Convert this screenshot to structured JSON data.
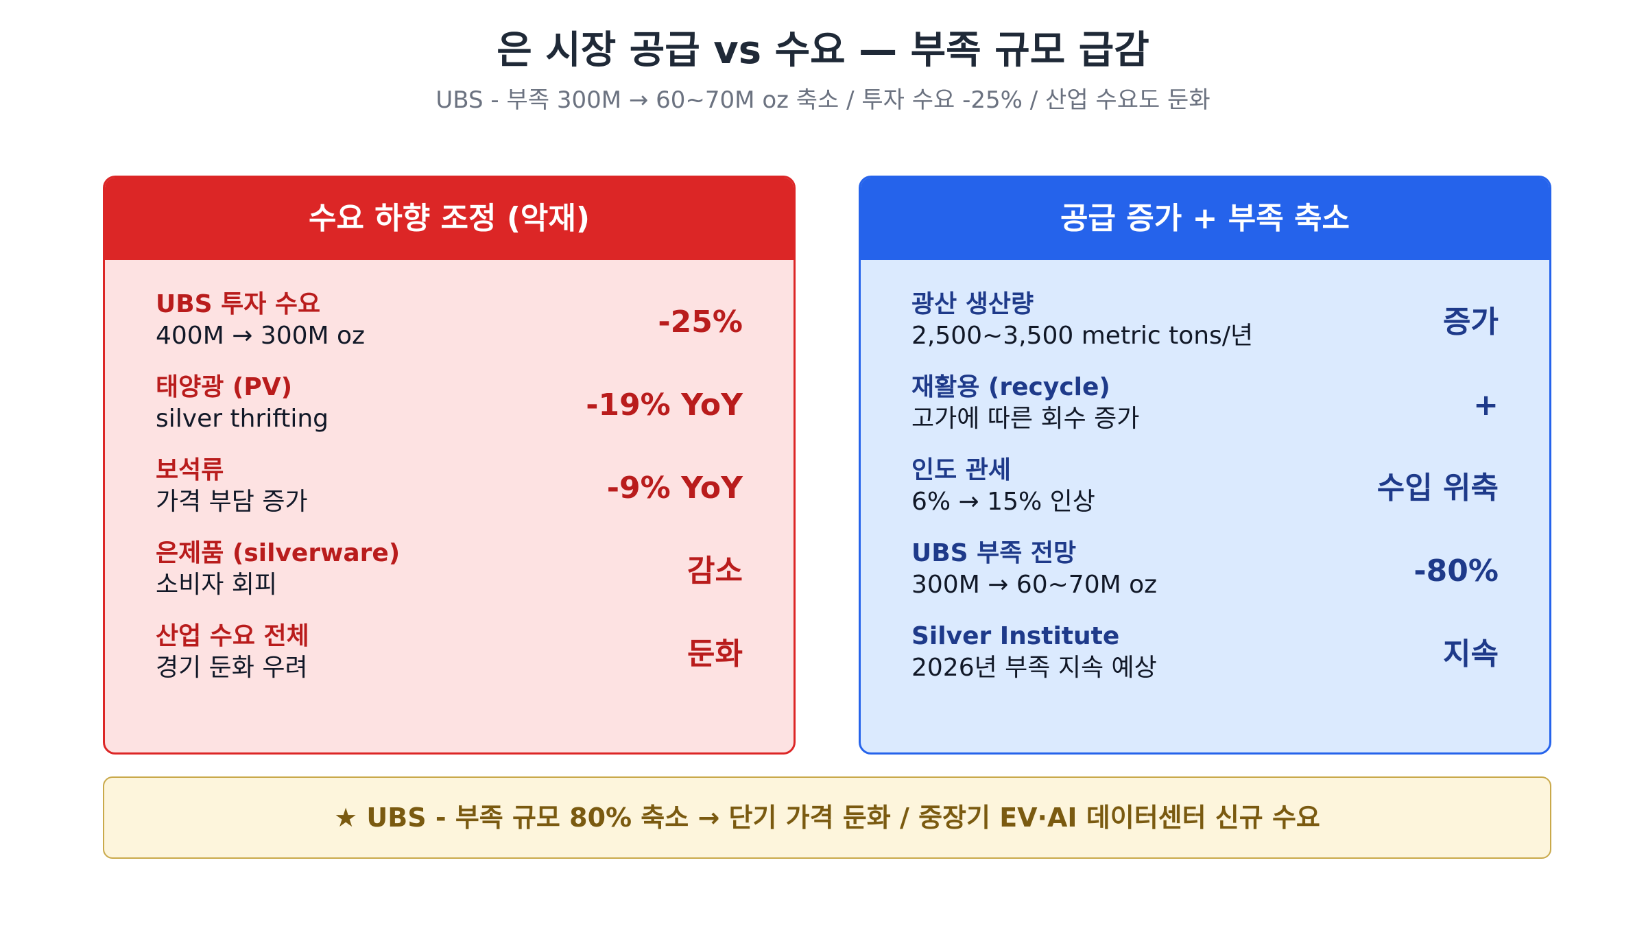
{
  "title": "은 시장 공급 vs 수요 — 부족 규모 급감",
  "subtitle": "UBS - 부족 300M → 60~70M oz 축소 / 투자 수요 -25% / 산업 수요도 둔화",
  "colors": {
    "demand_accent": "#dc2626",
    "demand_bg": "#fde2e2",
    "supply_accent": "#2563eb",
    "supply_bg": "#dbeafe",
    "footer_bg": "#fdf5dc",
    "footer_text": "#7a5a10"
  },
  "demand_panel": {
    "header": "수요 하향 조정 (악재)",
    "rows": [
      {
        "label": "UBS 투자 수요",
        "sub": "400M → 300M oz",
        "value": "-25%"
      },
      {
        "label": "태양광 (PV)",
        "sub": "silver thrifting",
        "value": "-19% YoY"
      },
      {
        "label": "보석류",
        "sub": "가격 부담 증가",
        "value": "-9% YoY"
      },
      {
        "label": "은제품 (silverware)",
        "sub": "소비자 회피",
        "value": "감소"
      },
      {
        "label": "산업 수요 전체",
        "sub": "경기 둔화 우려",
        "value": "둔화"
      }
    ]
  },
  "supply_panel": {
    "header": "공급 증가 + 부족 축소",
    "rows": [
      {
        "label": "광산 생산량",
        "sub": "2,500~3,500 metric tons/년",
        "value": "증가"
      },
      {
        "label": "재활용 (recycle)",
        "sub": "고가에 따른 회수 증가",
        "value": "+"
      },
      {
        "label": "인도 관세",
        "sub": "6% → 15% 인상",
        "value": "수입 위축"
      },
      {
        "label": "UBS 부족 전망",
        "sub": "300M → 60~70M oz",
        "value": "-80%"
      },
      {
        "label": "Silver Institute",
        "sub": "2026년 부족 지속 예상",
        "value": "지속"
      }
    ]
  },
  "footer": "★ UBS - 부족 규모 80% 축소 → 단기 가격 둔화 / 중장기 EV·AI 데이터센터 신규 수요"
}
